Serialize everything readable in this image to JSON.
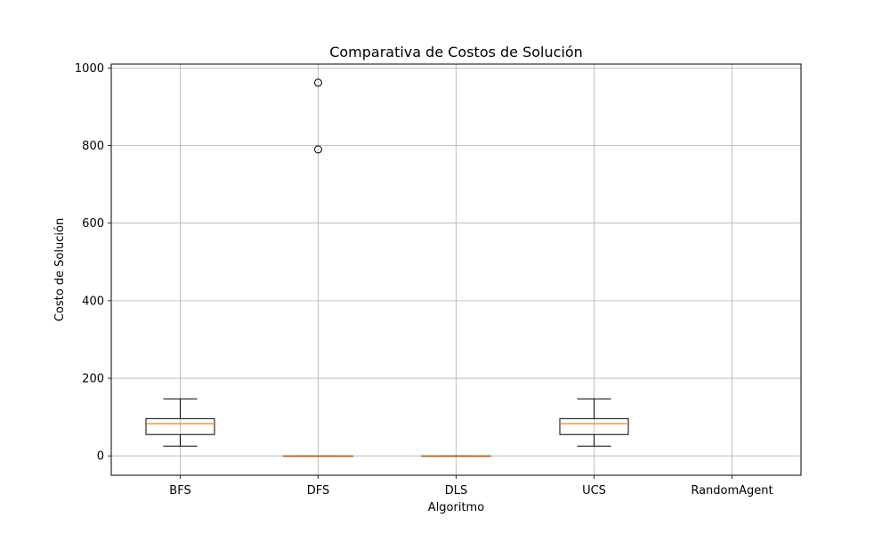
{
  "chart_data": {
    "type": "box",
    "title": "Comparativa de Costos de Solución",
    "xlabel": "Algoritmo",
    "ylabel": "Costo de Solución",
    "categories": [
      "BFS",
      "DFS",
      "DLS",
      "UCS",
      "RandomAgent"
    ],
    "ylim": [
      -50,
      1010
    ],
    "yticks": [
      0,
      200,
      400,
      600,
      800,
      1000
    ],
    "grid": true,
    "boxes": [
      {
        "category": "BFS",
        "whisker_low": 25,
        "q1": 55,
        "median": 83,
        "q3": 96,
        "whisker_high": 147,
        "outliers": []
      },
      {
        "category": "DFS",
        "whisker_low": 0,
        "q1": 0,
        "median": 0,
        "q3": 0,
        "whisker_high": 0,
        "outliers": [
          790,
          962
        ]
      },
      {
        "category": "DLS",
        "whisker_low": 0,
        "q1": 0,
        "median": 0,
        "q3": 0,
        "whisker_high": 0,
        "outliers": []
      },
      {
        "category": "UCS",
        "whisker_low": 25,
        "q1": 55,
        "median": 83,
        "q3": 96,
        "whisker_high": 147,
        "outliers": []
      },
      {
        "category": "RandomAgent",
        "empty": true
      }
    ],
    "colors": {
      "box": "#000000",
      "median": "#ff7f0e",
      "grid": "#b0b0b0"
    }
  }
}
